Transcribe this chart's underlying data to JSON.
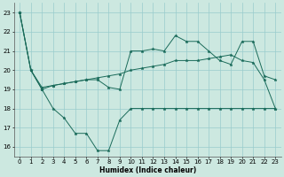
{
  "xlabel": "Humidex (Indice chaleur)",
  "ylabel": "",
  "bg_color": "#cce8e0",
  "grid_color": "#99cccc",
  "line_color": "#1a6b5a",
  "xlim": [
    -0.5,
    23.5
  ],
  "ylim": [
    15.5,
    23.5
  ],
  "yticks": [
    16,
    17,
    18,
    19,
    20,
    21,
    22,
    23
  ],
  "xticks": [
    0,
    1,
    2,
    3,
    4,
    5,
    6,
    7,
    8,
    9,
    10,
    11,
    12,
    13,
    14,
    15,
    16,
    17,
    18,
    19,
    20,
    21,
    22,
    23
  ],
  "series": [
    [
      23,
      20,
      19,
      18,
      17.5,
      16.7,
      16.7,
      15.8,
      15.8,
      17.4,
      18,
      18,
      18,
      18,
      18,
      18,
      18,
      18,
      18,
      18,
      18,
      18,
      18,
      18
    ],
    [
      23,
      20,
      19,
      19.2,
      19.3,
      19.4,
      19.5,
      19.5,
      19.1,
      19.0,
      21.0,
      21.0,
      21.1,
      21.0,
      21.8,
      21.5,
      21.5,
      21.0,
      20.5,
      20.3,
      21.5,
      21.5,
      19.7,
      19.5
    ],
    [
      23,
      20,
      19.1,
      19.2,
      19.3,
      19.4,
      19.5,
      19.6,
      19.7,
      19.8,
      20.0,
      20.1,
      20.2,
      20.3,
      20.5,
      20.5,
      20.5,
      20.6,
      20.7,
      20.8,
      20.5,
      20.4,
      19.5,
      18
    ]
  ],
  "marker": "*",
  "markersize": 2.5,
  "linewidth": 0.7
}
